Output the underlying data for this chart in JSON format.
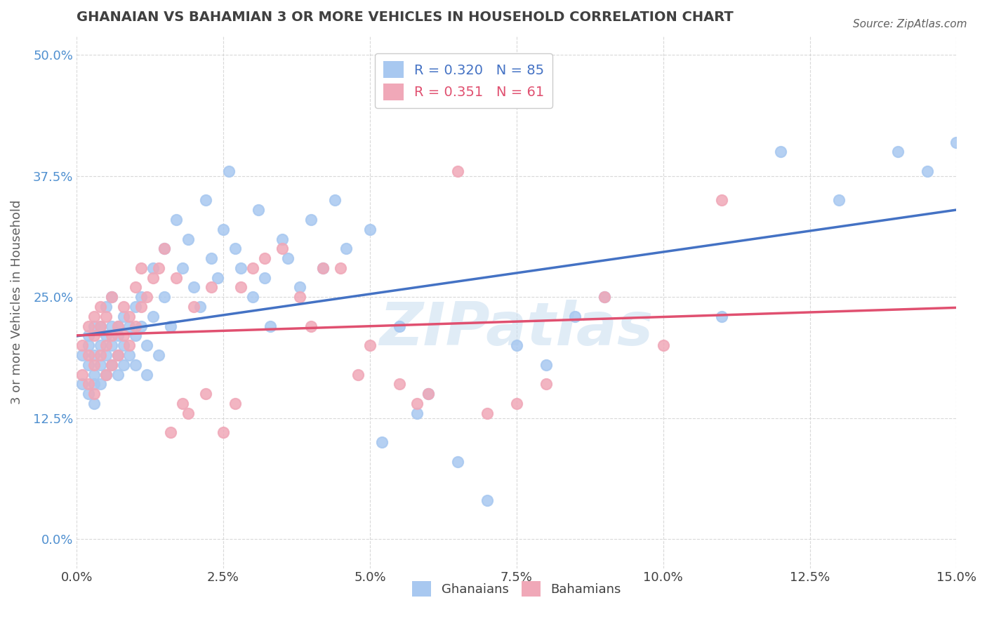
{
  "title": "GHANAIAN VS BAHAMIAN 3 OR MORE VEHICLES IN HOUSEHOLD CORRELATION CHART",
  "source": "Source: ZipAtlas.com",
  "xlabel_ticks": [
    "0.0%",
    "2.5%",
    "5.0%",
    "7.5%",
    "10.0%",
    "12.5%",
    "15.0%"
  ],
  "ylabel_ticks": [
    "0.0%",
    "12.5%",
    "25.0%",
    "37.5%",
    "50.0%"
  ],
  "xlabel_label": "",
  "ylabel_label": "3 or more Vehicles in Household",
  "legend_labels": [
    "Ghanaians",
    "Bahamians"
  ],
  "legend_R": [
    0.32,
    0.351
  ],
  "legend_N": [
    85,
    61
  ],
  "ghanaian_color": "#a8c8f0",
  "bahamian_color": "#f0a8b8",
  "ghanaian_line_color": "#4472c4",
  "bahamian_line_color": "#e05070",
  "watermark": "ZIPatlas",
  "xmin": 0.0,
  "xmax": 0.15,
  "ymin": -0.03,
  "ymax": 0.52,
  "ghanaian_x": [
    0.001,
    0.001,
    0.002,
    0.002,
    0.002,
    0.002,
    0.003,
    0.003,
    0.003,
    0.003,
    0.003,
    0.004,
    0.004,
    0.004,
    0.004,
    0.005,
    0.005,
    0.005,
    0.005,
    0.006,
    0.006,
    0.006,
    0.006,
    0.007,
    0.007,
    0.007,
    0.007,
    0.008,
    0.008,
    0.008,
    0.009,
    0.009,
    0.01,
    0.01,
    0.01,
    0.011,
    0.011,
    0.012,
    0.012,
    0.013,
    0.013,
    0.014,
    0.015,
    0.015,
    0.016,
    0.017,
    0.018,
    0.019,
    0.02,
    0.021,
    0.022,
    0.023,
    0.024,
    0.025,
    0.026,
    0.027,
    0.028,
    0.03,
    0.031,
    0.032,
    0.033,
    0.035,
    0.036,
    0.038,
    0.04,
    0.042,
    0.044,
    0.046,
    0.05,
    0.052,
    0.055,
    0.058,
    0.06,
    0.065,
    0.07,
    0.075,
    0.08,
    0.085,
    0.09,
    0.11,
    0.12,
    0.13,
    0.14,
    0.145,
    0.15
  ],
  "ghanaian_y": [
    0.19,
    0.16,
    0.21,
    0.18,
    0.15,
    0.2,
    0.22,
    0.17,
    0.16,
    0.19,
    0.14,
    0.2,
    0.18,
    0.22,
    0.16,
    0.21,
    0.19,
    0.24,
    0.17,
    0.22,
    0.2,
    0.18,
    0.25,
    0.19,
    0.22,
    0.17,
    0.21,
    0.2,
    0.23,
    0.18,
    0.22,
    0.19,
    0.24,
    0.21,
    0.18,
    0.25,
    0.22,
    0.2,
    0.17,
    0.28,
    0.23,
    0.19,
    0.3,
    0.25,
    0.22,
    0.33,
    0.28,
    0.31,
    0.26,
    0.24,
    0.35,
    0.29,
    0.27,
    0.32,
    0.38,
    0.3,
    0.28,
    0.25,
    0.34,
    0.27,
    0.22,
    0.31,
    0.29,
    0.26,
    0.33,
    0.28,
    0.35,
    0.3,
    0.32,
    0.1,
    0.22,
    0.13,
    0.15,
    0.08,
    0.04,
    0.2,
    0.18,
    0.23,
    0.25,
    0.23,
    0.4,
    0.35,
    0.4,
    0.38,
    0.41
  ],
  "bahamian_x": [
    0.001,
    0.001,
    0.002,
    0.002,
    0.002,
    0.003,
    0.003,
    0.003,
    0.003,
    0.004,
    0.004,
    0.004,
    0.005,
    0.005,
    0.005,
    0.006,
    0.006,
    0.006,
    0.007,
    0.007,
    0.008,
    0.008,
    0.009,
    0.009,
    0.01,
    0.01,
    0.011,
    0.011,
    0.012,
    0.013,
    0.014,
    0.015,
    0.016,
    0.017,
    0.018,
    0.019,
    0.02,
    0.022,
    0.023,
    0.025,
    0.027,
    0.028,
    0.03,
    0.032,
    0.035,
    0.038,
    0.04,
    0.042,
    0.045,
    0.048,
    0.05,
    0.055,
    0.058,
    0.06,
    0.065,
    0.07,
    0.075,
    0.08,
    0.09,
    0.1,
    0.11
  ],
  "bahamian_y": [
    0.2,
    0.17,
    0.22,
    0.19,
    0.16,
    0.23,
    0.18,
    0.21,
    0.15,
    0.22,
    0.19,
    0.24,
    0.2,
    0.17,
    0.23,
    0.21,
    0.18,
    0.25,
    0.22,
    0.19,
    0.24,
    0.21,
    0.23,
    0.2,
    0.26,
    0.22,
    0.28,
    0.24,
    0.25,
    0.27,
    0.28,
    0.3,
    0.11,
    0.27,
    0.14,
    0.13,
    0.24,
    0.15,
    0.26,
    0.11,
    0.14,
    0.26,
    0.28,
    0.29,
    0.3,
    0.25,
    0.22,
    0.28,
    0.28,
    0.17,
    0.2,
    0.16,
    0.14,
    0.15,
    0.38,
    0.13,
    0.14,
    0.16,
    0.25,
    0.2,
    0.35
  ],
  "grid_color": "#d0d0d0",
  "background_color": "#ffffff",
  "title_color": "#404040",
  "axis_label_color": "#606060",
  "tick_label_color_x": "#404040",
  "tick_label_color_y": "#5090d0"
}
